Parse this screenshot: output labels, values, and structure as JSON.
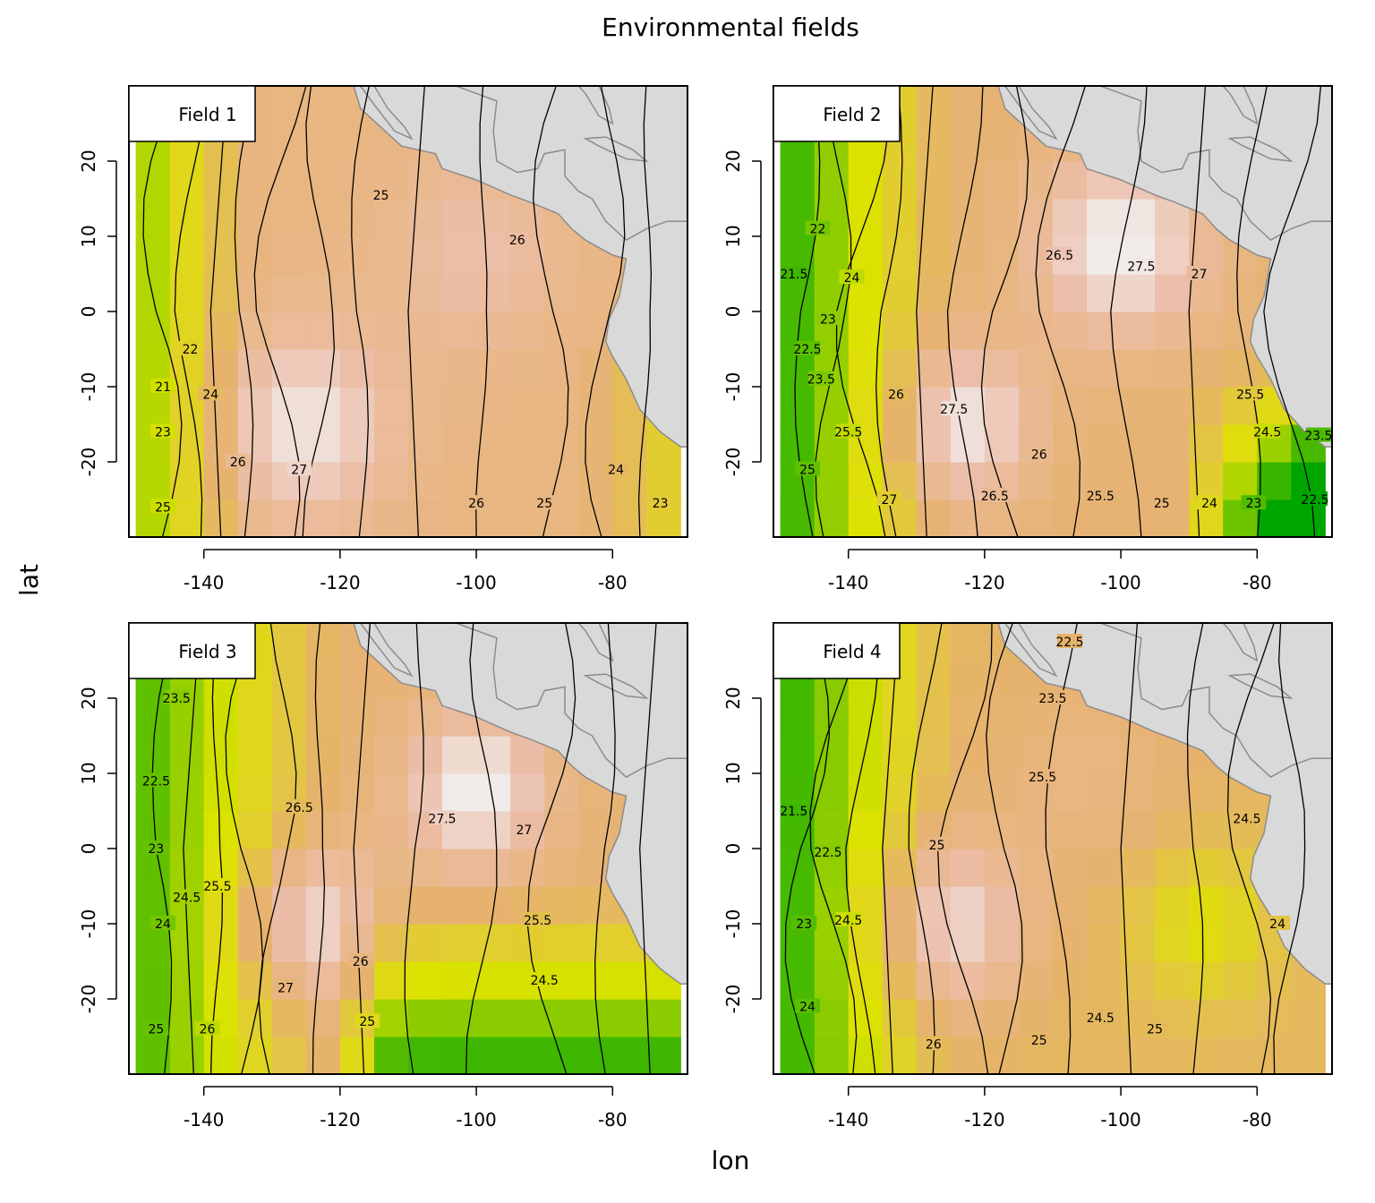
{
  "chart_data": {
    "type": "heatmap",
    "title": "Environmental fields",
    "xlabel": "lon",
    "ylabel": "lat",
    "xlim": [
      -151,
      -69
    ],
    "ylim": [
      -30,
      30
    ],
    "xticks": [
      -140,
      -120,
      -100,
      -80
    ],
    "yticks": [
      20,
      10,
      0,
      -10,
      -20
    ],
    "panels": [
      {
        "label": "Field 1",
        "contour_labels": [
          {
            "lon": -114,
            "lat": 15.5,
            "text": "25"
          },
          {
            "lon": -94,
            "lat": 9.5,
            "text": "26"
          },
          {
            "lon": -146,
            "lat": -10,
            "text": "21"
          },
          {
            "lon": -142,
            "lat": -5,
            "text": "22"
          },
          {
            "lon": -146,
            "lat": -16,
            "text": "23"
          },
          {
            "lon": -139,
            "lat": -11,
            "text": "24"
          },
          {
            "lon": -146,
            "lat": -26,
            "text": "25"
          },
          {
            "lon": -135,
            "lat": -20,
            "text": "26"
          },
          {
            "lon": -126,
            "lat": -21,
            "text": "27"
          },
          {
            "lon": -100,
            "lat": -25.5,
            "text": "26"
          },
          {
            "lon": -90,
            "lat": -25.5,
            "text": "25"
          },
          {
            "lon": -79.5,
            "lat": -21,
            "text": "24"
          },
          {
            "lon": -73,
            "lat": -25.5,
            "text": "23"
          }
        ]
      },
      {
        "label": "Field 2",
        "contour_labels": [
          {
            "lon": -148,
            "lat": 5,
            "text": "21.5"
          },
          {
            "lon": -144.5,
            "lat": 11,
            "text": "22"
          },
          {
            "lon": -146,
            "lat": -5,
            "text": "22.5"
          },
          {
            "lon": -143,
            "lat": -1,
            "text": "23"
          },
          {
            "lon": -144,
            "lat": -9,
            "text": "23.5"
          },
          {
            "lon": -139.5,
            "lat": 4.5,
            "text": "24"
          },
          {
            "lon": -146,
            "lat": -21,
            "text": "25"
          },
          {
            "lon": -140,
            "lat": -16,
            "text": "25.5"
          },
          {
            "lon": -133,
            "lat": -11,
            "text": "26"
          },
          {
            "lon": -134,
            "lat": -25,
            "text": "27"
          },
          {
            "lon": -124.5,
            "lat": -13,
            "text": "27.5"
          },
          {
            "lon": -109,
            "lat": 7.5,
            "text": "26.5"
          },
          {
            "lon": -97,
            "lat": 6,
            "text": "27.5"
          },
          {
            "lon": -88.5,
            "lat": 5,
            "text": "27"
          },
          {
            "lon": -81,
            "lat": -11,
            "text": "25.5"
          },
          {
            "lon": -78.5,
            "lat": -16,
            "text": "24.5"
          },
          {
            "lon": -71,
            "lat": -16.5,
            "text": "23.5"
          },
          {
            "lon": -112,
            "lat": -19,
            "text": "26"
          },
          {
            "lon": -118.5,
            "lat": -24.5,
            "text": "26.5"
          },
          {
            "lon": -103,
            "lat": -24.5,
            "text": "25.5"
          },
          {
            "lon": -94,
            "lat": -25.5,
            "text": "25"
          },
          {
            "lon": -87,
            "lat": -25.5,
            "text": "24"
          },
          {
            "lon": -80.5,
            "lat": -25.5,
            "text": "23"
          },
          {
            "lon": -71.5,
            "lat": -25,
            "text": "22.5"
          }
        ]
      },
      {
        "label": "Field 3",
        "contour_labels": [
          {
            "lon": -144,
            "lat": 20,
            "text": "23.5"
          },
          {
            "lon": -147,
            "lat": 9,
            "text": "22.5"
          },
          {
            "lon": -147,
            "lat": 0,
            "text": "23"
          },
          {
            "lon": -146,
            "lat": -10,
            "text": "24"
          },
          {
            "lon": -142.5,
            "lat": -6.5,
            "text": "24.5"
          },
          {
            "lon": -138,
            "lat": -5,
            "text": "25.5"
          },
          {
            "lon": -147,
            "lat": -24,
            "text": "25"
          },
          {
            "lon": -139.5,
            "lat": -24,
            "text": "26"
          },
          {
            "lon": -126,
            "lat": 5.5,
            "text": "26.5"
          },
          {
            "lon": -128,
            "lat": -18.5,
            "text": "27"
          },
          {
            "lon": -117,
            "lat": -15,
            "text": "26"
          },
          {
            "lon": -116,
            "lat": -23,
            "text": "25"
          },
          {
            "lon": -105,
            "lat": 4,
            "text": "27.5"
          },
          {
            "lon": -93,
            "lat": 2.5,
            "text": "27"
          },
          {
            "lon": -91,
            "lat": -9.5,
            "text": "25.5"
          },
          {
            "lon": -90,
            "lat": -17.5,
            "text": "24.5"
          }
        ]
      },
      {
        "label": "Field 4",
        "contour_labels": [
          {
            "lon": -107.5,
            "lat": 27.5,
            "text": "22.5"
          },
          {
            "lon": -110,
            "lat": 20,
            "text": "23.5"
          },
          {
            "lon": -148,
            "lat": 5,
            "text": "21.5"
          },
          {
            "lon": -143,
            "lat": -0.5,
            "text": "22.5"
          },
          {
            "lon": -146.5,
            "lat": -10,
            "text": "23"
          },
          {
            "lon": -140,
            "lat": -9.5,
            "text": "24.5"
          },
          {
            "lon": -146,
            "lat": -21,
            "text": "24"
          },
          {
            "lon": -127,
            "lat": 0.5,
            "text": "25"
          },
          {
            "lon": -111.5,
            "lat": 9.5,
            "text": "25.5"
          },
          {
            "lon": -127.5,
            "lat": -26,
            "text": "26"
          },
          {
            "lon": -112,
            "lat": -25.5,
            "text": "25"
          },
          {
            "lon": -103,
            "lat": -22.5,
            "text": "24.5"
          },
          {
            "lon": -95,
            "lat": -24,
            "text": "25"
          },
          {
            "lon": -81.5,
            "lat": 4,
            "text": "24.5"
          },
          {
            "lon": -77,
            "lat": -10,
            "text": "24"
          }
        ]
      }
    ]
  }
}
